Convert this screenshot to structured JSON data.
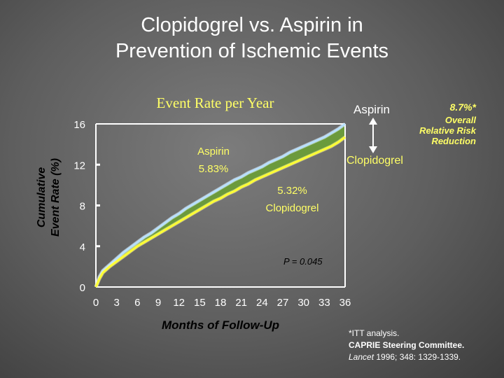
{
  "title": {
    "line1": "Clopidogrel vs. Aspirin in",
    "line2": "Prevention of Ischemic Events"
  },
  "chart_data": {
    "type": "line",
    "title": "Event Rate per Year",
    "xlabel": "Months of Follow-Up",
    "ylabel": [
      "Cumulative",
      "Event Rate (%)"
    ],
    "xlim": [
      0,
      36
    ],
    "ylim": [
      0,
      16
    ],
    "x_ticks": [
      0,
      3,
      6,
      9,
      12,
      15,
      18,
      21,
      24,
      27,
      30,
      33,
      36
    ],
    "y_ticks": [
      0,
      4,
      8,
      12,
      16
    ],
    "grid": false,
    "series": [
      {
        "name": "Aspirin",
        "color": "#b8e0ff",
        "x": [
          0,
          0.5,
          1,
          2,
          3,
          4,
          5,
          6,
          7,
          8,
          9,
          10,
          11,
          12,
          13,
          14,
          15,
          16,
          17,
          18,
          19,
          20,
          21,
          22,
          23,
          24,
          25,
          26,
          27,
          28,
          29,
          30,
          31,
          32,
          33,
          34,
          35,
          36
        ],
        "values": [
          0,
          1.0,
          1.6,
          2.2,
          2.8,
          3.4,
          3.9,
          4.4,
          4.9,
          5.3,
          5.8,
          6.3,
          6.8,
          7.2,
          7.7,
          8.1,
          8.5,
          8.9,
          9.3,
          9.7,
          10.1,
          10.5,
          10.8,
          11.2,
          11.5,
          11.8,
          12.2,
          12.5,
          12.8,
          13.2,
          13.5,
          13.8,
          14.1,
          14.4,
          14.7,
          15.1,
          15.5,
          16.0
        ]
      },
      {
        "name": "Clopidogrel",
        "color": "#ffff33",
        "x": [
          0,
          0.5,
          1,
          2,
          3,
          4,
          5,
          6,
          7,
          8,
          9,
          10,
          11,
          12,
          13,
          14,
          15,
          16,
          17,
          18,
          19,
          20,
          21,
          22,
          23,
          24,
          25,
          26,
          27,
          28,
          29,
          30,
          31,
          32,
          33,
          34,
          35,
          36
        ],
        "values": [
          0,
          0.8,
          1.4,
          2.0,
          2.5,
          3.0,
          3.5,
          4.0,
          4.4,
          4.8,
          5.2,
          5.6,
          6.0,
          6.4,
          6.8,
          7.2,
          7.6,
          8.0,
          8.4,
          8.7,
          9.1,
          9.4,
          9.8,
          10.1,
          10.5,
          10.8,
          11.1,
          11.4,
          11.7,
          12.0,
          12.3,
          12.6,
          12.9,
          13.2,
          13.5,
          13.8,
          14.2,
          14.7
        ]
      }
    ],
    "fill_between_color": "#6b9a3c",
    "annotations": [
      {
        "name": "aspirin-rate-label",
        "lines": [
          "Aspirin",
          "5.83%"
        ],
        "color": "#ffff66"
      },
      {
        "name": "clopidogrel-rate-label",
        "lines": [
          "5.32%",
          "Clopidogrel"
        ],
        "color": "#ffff66"
      },
      {
        "name": "p-value-label",
        "lines": [
          "P = 0.045"
        ],
        "color": "#000000"
      },
      {
        "name": "aspirin-end-label",
        "lines": [
          "Aspirin"
        ],
        "color": "#ffffff"
      },
      {
        "name": "clopidogrel-end-label",
        "lines": [
          "Clopidogrel"
        ],
        "color": "#ffff66"
      },
      {
        "name": "risk-reduction-label",
        "lines": [
          "8.7%*",
          "Overall",
          "Relative Risk",
          "Reduction"
        ],
        "color": "#ffff66"
      }
    ]
  },
  "footnote": {
    "line1": "*ITT analysis.",
    "line2": "CAPRIE Steering Committee.",
    "line3_italic": "Lancet",
    "line3_rest": " 1996; 348: 1329-1339."
  }
}
